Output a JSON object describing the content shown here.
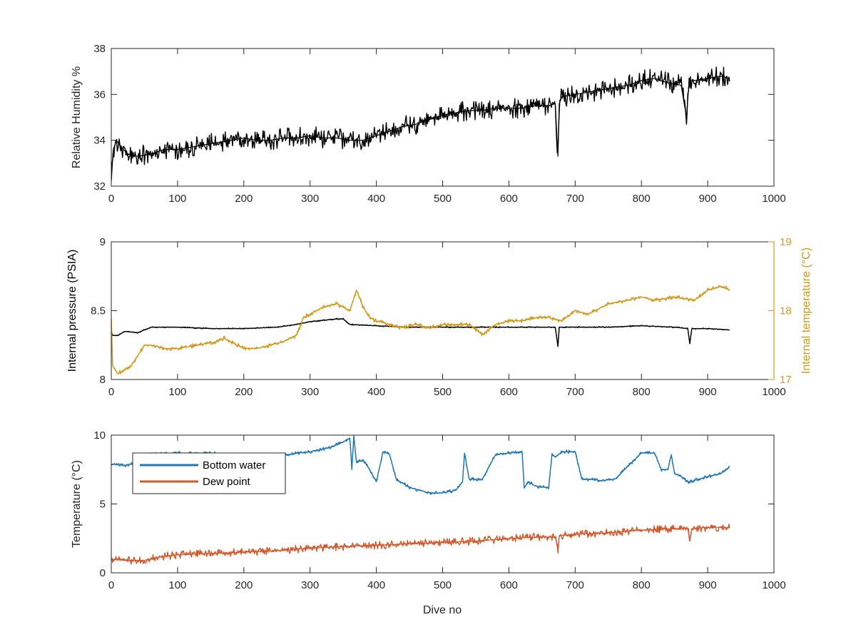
{
  "figure": {
    "xlabel": "Dive no"
  },
  "colors": {
    "humidity": "#000000",
    "pressure": "#000000",
    "internal_temperature": "#D19A1B",
    "bottom_water": "#1F77B4",
    "dew_point": "#D4582A",
    "axis": "#262626"
  },
  "chart_data": [
    {
      "type": "line",
      "ylabel": "Relative Humidity %",
      "xlim": [
        0,
        1000
      ],
      "ylim": [
        32,
        38
      ],
      "xticks": [
        "0",
        "100",
        "200",
        "300",
        "400",
        "500",
        "600",
        "700",
        "800",
        "900",
        "1000"
      ],
      "yticks": [
        "32",
        "34",
        "36",
        "38"
      ],
      "grid": false,
      "series": [
        {
          "color_key": "humidity",
          "x": [
            0,
            3,
            8,
            15,
            25,
            40,
            60,
            80,
            100,
            120,
            140,
            160,
            180,
            200,
            220,
            240,
            260,
            280,
            300,
            320,
            340,
            360,
            370,
            380,
            400,
            420,
            440,
            460,
            480,
            500,
            520,
            540,
            560,
            580,
            600,
            620,
            640,
            660,
            670,
            674,
            676,
            680,
            700,
            720,
            740,
            760,
            780,
            800,
            820,
            840,
            860,
            868,
            872,
            876,
            880,
            900,
            920,
            933
          ],
          "y": [
            32.2,
            33.6,
            34.0,
            33.7,
            33.4,
            33.3,
            33.4,
            33.6,
            33.6,
            33.7,
            33.8,
            33.9,
            34.0,
            34.1,
            34.0,
            34.0,
            34.1,
            34.1,
            34.2,
            34.1,
            34.1,
            34.0,
            34.0,
            34.0,
            34.2,
            34.4,
            34.6,
            34.7,
            34.9,
            35.1,
            35.2,
            35.3,
            35.3,
            35.4,
            35.4,
            35.4,
            35.5,
            35.5,
            35.6,
            33.3,
            35.6,
            35.9,
            36.0,
            36.1,
            36.2,
            36.3,
            36.4,
            36.6,
            36.7,
            36.5,
            36.4,
            35.0,
            36.6,
            36.6,
            36.6,
            36.7,
            36.8,
            36.7
          ],
          "noise": 0.9
        }
      ]
    },
    {
      "type": "line",
      "ylabel": "Internal pressure (PSIA)",
      "y2label": "Internal temperature (°C)",
      "xlim": [
        0,
        1000
      ],
      "ylim": [
        8,
        9
      ],
      "y2lim": [
        17,
        19
      ],
      "xticks": [
        "0",
        "100",
        "200",
        "300",
        "400",
        "500",
        "600",
        "700",
        "800",
        "900",
        "1000"
      ],
      "yticks": [
        "8",
        "8.5",
        "9"
      ],
      "y2ticks": [
        "17",
        "18",
        "19"
      ],
      "grid": false,
      "series": [
        {
          "axis": "left",
          "color_key": "pressure",
          "x": [
            0,
            2,
            10,
            20,
            40,
            60,
            100,
            150,
            200,
            250,
            280,
            300,
            320,
            340,
            350,
            360,
            400,
            450,
            500,
            550,
            600,
            650,
            670,
            674,
            676,
            680,
            700,
            750,
            800,
            850,
            870,
            873,
            876,
            880,
            900,
            933
          ],
          "y": [
            8.35,
            8.32,
            8.32,
            8.35,
            8.34,
            8.38,
            8.38,
            8.37,
            8.37,
            8.38,
            8.4,
            8.42,
            8.43,
            8.44,
            8.44,
            8.4,
            8.39,
            8.38,
            8.38,
            8.38,
            8.38,
            8.38,
            8.38,
            8.24,
            8.38,
            8.38,
            8.38,
            8.38,
            8.39,
            8.38,
            8.37,
            8.26,
            8.37,
            8.37,
            8.37,
            8.36
          ],
          "noise": 0.05
        },
        {
          "axis": "right",
          "color_key": "internal_temperature",
          "x": [
            0,
            2,
            5,
            10,
            20,
            30,
            40,
            50,
            60,
            80,
            100,
            130,
            160,
            170,
            200,
            220,
            240,
            260,
            280,
            290,
            300,
            320,
            340,
            350,
            360,
            370,
            380,
            390,
            400,
            420,
            440,
            460,
            480,
            500,
            540,
            560,
            580,
            600,
            620,
            640,
            660,
            680,
            700,
            720,
            750,
            780,
            800,
            820,
            850,
            880,
            900,
            920,
            933
          ],
          "y": [
            17.9,
            17.2,
            17.15,
            17.08,
            17.15,
            17.2,
            17.35,
            17.5,
            17.5,
            17.45,
            17.45,
            17.5,
            17.55,
            17.6,
            17.45,
            17.45,
            17.5,
            17.55,
            17.65,
            17.9,
            17.95,
            18.05,
            18.1,
            18.05,
            18.0,
            18.3,
            18.05,
            17.9,
            17.85,
            17.8,
            17.75,
            17.8,
            17.75,
            17.8,
            17.8,
            17.65,
            17.8,
            17.85,
            17.85,
            17.9,
            17.9,
            17.85,
            18.0,
            17.95,
            18.1,
            18.15,
            18.2,
            18.15,
            18.2,
            18.15,
            18.3,
            18.35,
            18.3
          ],
          "noise": 0.18
        }
      ]
    },
    {
      "type": "line",
      "ylabel": "Temperature (°C)",
      "xlabel": "Dive no",
      "xlim": [
        0,
        1000
      ],
      "ylim": [
        0,
        10
      ],
      "xticks": [
        "0",
        "100",
        "200",
        "300",
        "400",
        "500",
        "600",
        "700",
        "800",
        "900",
        "1000"
      ],
      "yticks": [
        "0",
        "5",
        "10"
      ],
      "grid": false,
      "legend": {
        "position": "top-left"
      },
      "series": [
        {
          "name": "Bottom water",
          "color_key": "bottom_water",
          "x": [
            0,
            20,
            40,
            60,
            100,
            150,
            200,
            250,
            300,
            330,
            350,
            360,
            363,
            366,
            370,
            380,
            390,
            400,
            410,
            420,
            430,
            450,
            480,
            500,
            520,
            530,
            533,
            540,
            560,
            580,
            600,
            620,
            623,
            630,
            640,
            660,
            665,
            670,
            680,
            700,
            710,
            720,
            740,
            760,
            800,
            820,
            830,
            840,
            845,
            850,
            860,
            870,
            880,
            900,
            920,
            933
          ],
          "y": [
            7.9,
            7.8,
            8.0,
            8.6,
            8.7,
            8.7,
            8.4,
            8.5,
            8.8,
            9.1,
            9.5,
            9.8,
            7.5,
            9.9,
            8.0,
            8.2,
            7.5,
            6.6,
            8.8,
            8.6,
            6.8,
            6.2,
            5.8,
            5.8,
            6.0,
            6.6,
            8.7,
            6.8,
            6.8,
            8.6,
            8.7,
            8.8,
            6.2,
            6.6,
            6.3,
            6.2,
            8.6,
            8.4,
            8.8,
            8.8,
            6.8,
            6.8,
            6.7,
            6.8,
            8.7,
            8.7,
            7.5,
            7.5,
            8.6,
            7.2,
            7.0,
            6.6,
            6.7,
            7.0,
            7.2,
            7.7
          ],
          "noise": 0.15
        },
        {
          "name": "Dew point",
          "color_key": "dew_point",
          "x": [
            0,
            20,
            50,
            80,
            100,
            150,
            200,
            250,
            300,
            350,
            400,
            450,
            500,
            550,
            600,
            650,
            670,
            674,
            676,
            700,
            750,
            800,
            850,
            870,
            873,
            876,
            900,
            933
          ],
          "y": [
            1.0,
            0.9,
            0.9,
            1.2,
            1.3,
            1.4,
            1.5,
            1.6,
            1.8,
            1.9,
            2.0,
            2.1,
            2.2,
            2.3,
            2.5,
            2.6,
            2.6,
            1.7,
            2.7,
            2.8,
            2.9,
            3.1,
            3.2,
            3.2,
            2.3,
            3.2,
            3.3,
            3.3
          ],
          "noise": 0.35
        }
      ]
    }
  ]
}
